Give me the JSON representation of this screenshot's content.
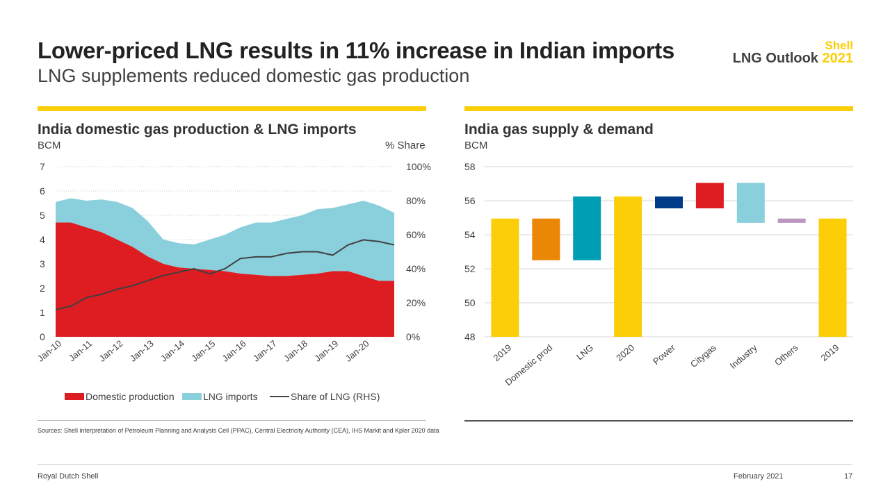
{
  "header": {
    "title": "Lower-priced LNG results in 11% increase in Indian imports",
    "subtitle": "LNG supplements reduced domestic gas production",
    "brand_line1": "Shell",
    "brand_line2": "LNG Outlook",
    "brand_year": "2021"
  },
  "left_panel": {
    "title": "India domestic gas production & LNG imports",
    "unit_left": "BCM",
    "unit_right": "% Share",
    "legend": {
      "domestic": "Domestic production",
      "lng": "LNG imports",
      "share": "Share of LNG (RHS)"
    }
  },
  "right_panel": {
    "title": "India gas supply & demand",
    "unit": "BCM"
  },
  "colors": {
    "brand_yellow": "#fbce07",
    "domestic_red": "#dd1d21",
    "lng_light_blue": "#89cfdc",
    "share_line": "#404040",
    "wf_2019": "#fbce07",
    "wf_domestic": "#eb8705",
    "wf_lng": "#009eb4",
    "wf_power": "#003c88",
    "wf_citygas": "#dd1d21",
    "wf_industry": "#89cfdc",
    "wf_others": "#ba95be"
  },
  "chart_data": [
    {
      "type": "area",
      "title": "India domestic gas production & LNG imports",
      "ylabel": "BCM",
      "y2label": "% Share",
      "ylim": [
        0,
        7
      ],
      "y2lim": [
        0,
        100
      ],
      "yticks": [
        "0",
        "1",
        "2",
        "3",
        "4",
        "5",
        "6",
        "7"
      ],
      "y2ticks": [
        "0%",
        "20%",
        "40%",
        "60%",
        "80%",
        "100%"
      ],
      "x_tick_labels": [
        "Jan-10",
        "Jan-11",
        "Jan-12",
        "Jan-13",
        "Jan-14",
        "Jan-15",
        "Jan-16",
        "Jan-17",
        "Jan-18",
        "Jan-19",
        "Jan-20"
      ],
      "x_start_year": 2010,
      "stacked": true,
      "series": [
        {
          "name": "Domestic production",
          "axis": "left",
          "values": [
            4.7,
            4.7,
            4.5,
            4.3,
            4.0,
            3.7,
            3.3,
            3.0,
            2.85,
            2.8,
            2.75,
            2.7,
            2.6,
            2.55,
            2.5,
            2.5,
            2.55,
            2.6,
            2.7,
            2.7,
            2.5,
            2.3,
            2.3
          ]
        },
        {
          "name": "LNG imports",
          "axis": "left",
          "values": [
            0.85,
            1.0,
            1.1,
            1.35,
            1.55,
            1.6,
            1.45,
            1.0,
            1.0,
            1.0,
            1.25,
            1.5,
            1.9,
            2.15,
            2.2,
            2.35,
            2.45,
            2.65,
            2.6,
            2.75,
            3.1,
            3.1,
            2.8
          ]
        },
        {
          "name": "Share of LNG (RHS)",
          "axis": "right",
          "values": [
            16,
            18,
            23,
            25,
            28,
            30,
            33,
            36,
            38,
            40,
            37,
            40,
            46,
            47,
            47,
            49,
            50,
            50,
            48,
            54,
            57,
            56,
            54
          ]
        }
      ]
    },
    {
      "type": "bar",
      "subtype": "waterfall",
      "title": "India gas supply & demand",
      "ylabel": "BCM",
      "ylim": [
        48,
        58
      ],
      "yticks": [
        "48",
        "50",
        "52",
        "54",
        "56",
        "58"
      ],
      "categories": [
        "2019",
        "Domestic prod",
        "LNG",
        "2020",
        "Power",
        "Citygas",
        "Industry",
        "Others",
        "2019"
      ],
      "ranges": [
        [
          48,
          54.95
        ],
        [
          52.5,
          54.95
        ],
        [
          52.5,
          56.25
        ],
        [
          48,
          56.25
        ],
        [
          55.55,
          56.25
        ],
        [
          55.55,
          57.05
        ],
        [
          54.7,
          57.05
        ],
        [
          54.7,
          54.95
        ],
        [
          48,
          54.95
        ]
      ]
    }
  ],
  "sources": "Sources: Shell interpretation of Petroleum Planning and Analysis Cell (PPAC), Central Electricity Authority (CEA), IHS Markit and Kpler 2020 data",
  "footer": {
    "company": "Royal Dutch Shell",
    "date": "February 2021",
    "page": "17"
  }
}
